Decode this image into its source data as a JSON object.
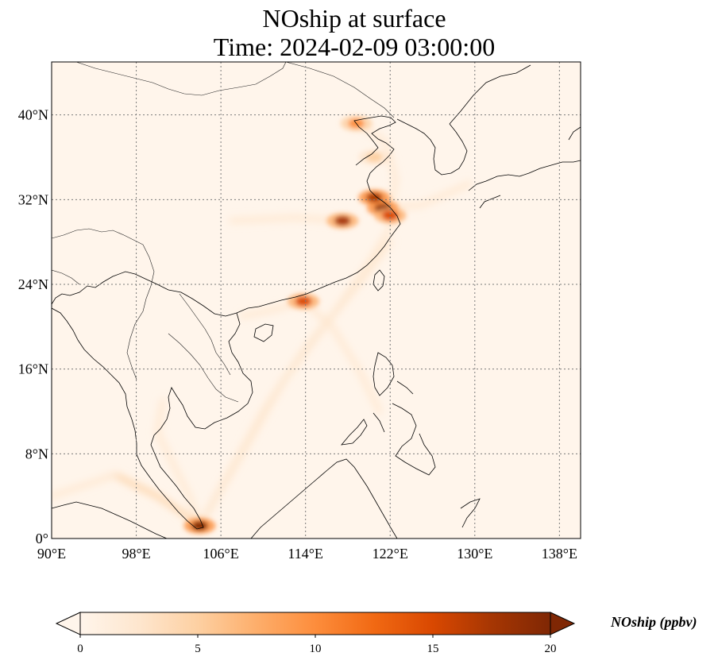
{
  "figure": {
    "title_line1": "NOship at surface",
    "title_line2": "Time: 2024-02-09 03:00:00"
  },
  "map": {
    "lon_range": [
      90,
      140
    ],
    "lat_range": [
      0,
      45
    ],
    "lon_ticks": [
      {
        "value": 90,
        "label": "90°E"
      },
      {
        "value": 98,
        "label": "98°E"
      },
      {
        "value": 106,
        "label": "106°E"
      },
      {
        "value": 114,
        "label": "114°E"
      },
      {
        "value": 122,
        "label": "122°E"
      },
      {
        "value": 130,
        "label": "130°E"
      },
      {
        "value": 138,
        "label": "138°E"
      }
    ],
    "lat_ticks": [
      {
        "value": 0,
        "label": "0°"
      },
      {
        "value": 8,
        "label": "8°N"
      },
      {
        "value": 16,
        "label": "16°N"
      },
      {
        "value": 24,
        "label": "24°N"
      },
      {
        "value": 32,
        "label": "32°N"
      },
      {
        "value": 40,
        "label": "40°N"
      }
    ],
    "gridlines": "dotted",
    "background_color": "#fff5eb"
  },
  "colorbar": {
    "label": "NOship (ppbv)",
    "min": 0,
    "max": 20,
    "ticks": [
      {
        "value": 0,
        "label": "0"
      },
      {
        "value": 5,
        "label": "5"
      },
      {
        "value": 10,
        "label": "10"
      },
      {
        "value": 15,
        "label": "15"
      },
      {
        "value": 20,
        "label": "20"
      }
    ],
    "colormap": [
      "#fff5eb",
      "#fee6ce",
      "#fdd0a2",
      "#fdae6b",
      "#fd8d3c",
      "#f16913",
      "#d94801",
      "#a63603",
      "#7f2704"
    ],
    "extend": "both"
  },
  "chart_data": {
    "type": "heatmap",
    "variable": "NOship",
    "units": "ppbv",
    "hotspots": [
      {
        "lon": 121.3,
        "lat": 31.2,
        "value": 20
      },
      {
        "lon": 120.5,
        "lat": 32.2,
        "value": 18
      },
      {
        "lon": 122.0,
        "lat": 30.5,
        "value": 16
      },
      {
        "lon": 113.8,
        "lat": 22.4,
        "value": 15
      },
      {
        "lon": 104.0,
        "lat": 1.2,
        "value": 20
      },
      {
        "lon": 117.5,
        "lat": 30.0,
        "value": 17
      },
      {
        "lon": 118.8,
        "lat": 39.2,
        "value": 10
      },
      {
        "lon": 120.5,
        "lat": 36.0,
        "value": 6
      }
    ],
    "shipping_lanes": [
      {
        "points": [
          [
            104.0,
            1.2
          ],
          [
            108.0,
            8.0
          ],
          [
            112.0,
            15.0
          ],
          [
            116.5,
            21.0
          ],
          [
            120.0,
            26.0
          ],
          [
            123.0,
            31.0
          ]
        ],
        "value": 3
      },
      {
        "points": [
          [
            104.0,
            1.2
          ],
          [
            110.0,
            12.0
          ],
          [
            114.0,
            18.0
          ],
          [
            119.0,
            24.0
          ],
          [
            122.0,
            28.0
          ]
        ],
        "value": 2
      },
      {
        "points": [
          [
            113.8,
            22.4
          ],
          [
            116.5,
            20.0
          ],
          [
            119.0,
            16.0
          ],
          [
            121.0,
            12.0
          ]
        ],
        "value": 2
      },
      {
        "points": [
          [
            96.0,
            6.0
          ],
          [
            100.0,
            4.0
          ],
          [
            103.0,
            2.0
          ],
          [
            104.0,
            1.2
          ]
        ],
        "value": 4
      },
      {
        "points": [
          [
            90.0,
            4.0
          ],
          [
            96.0,
            6.0
          ]
        ],
        "value": 2
      },
      {
        "points": [
          [
            104.0,
            1.2
          ],
          [
            103.0,
            4.0
          ],
          [
            100.0,
            10.0
          ],
          [
            100.5,
            13.0
          ]
        ],
        "value": 3
      },
      {
        "points": [
          [
            121.3,
            31.2
          ],
          [
            125.0,
            31.5
          ],
          [
            129.5,
            33.5
          ]
        ],
        "value": 2
      },
      {
        "points": [
          [
            117.5,
            30.0
          ],
          [
            113.0,
            30.3
          ],
          [
            107.0,
            30.0
          ]
        ],
        "value": 3
      },
      {
        "points": [
          [
            122.0,
            30.5
          ],
          [
            122.5,
            34.0
          ],
          [
            121.5,
            37.5
          ],
          [
            119.5,
            38.8
          ]
        ],
        "value": 3
      },
      {
        "points": [
          [
            113.8,
            22.4
          ],
          [
            111.0,
            21.6
          ],
          [
            108.0,
            21.0
          ]
        ],
        "value": 2
      }
    ]
  }
}
